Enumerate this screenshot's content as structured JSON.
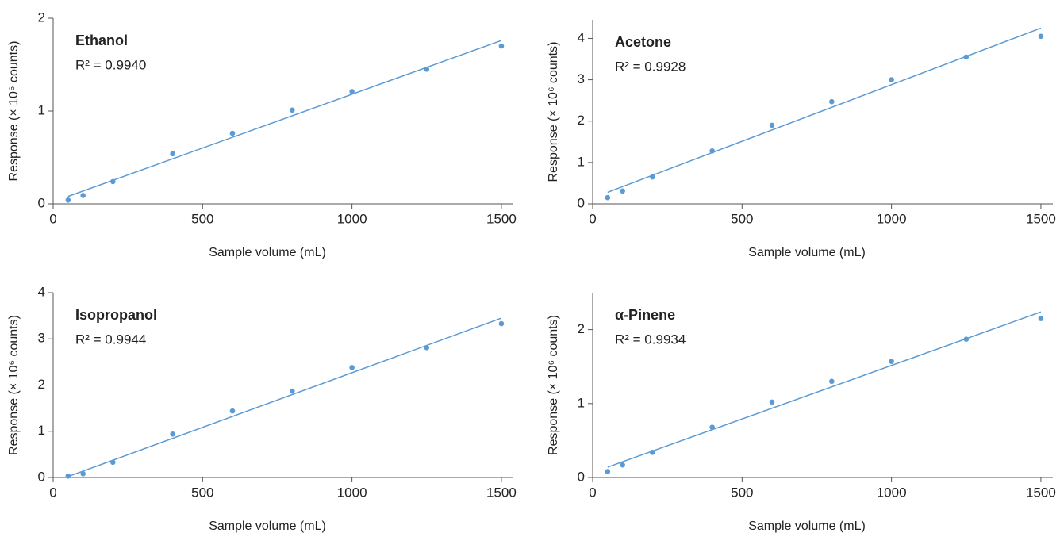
{
  "chart_data": [
    {
      "type": "scatter",
      "title": "Ethanol",
      "annotation": "R² = 0.9940",
      "x_label": "Sample volume (mL)",
      "y_label": "Response (× 10⁶ counts)",
      "x": [
        50,
        100,
        200,
        400,
        600,
        800,
        1000,
        1250,
        1500
      ],
      "values": [
        0.04,
        0.09,
        0.24,
        0.54,
        0.76,
        1.01,
        1.21,
        1.45,
        1.7
      ],
      "fit": {
        "x": [
          50,
          1500
        ],
        "y": [
          0.08,
          1.76
        ]
      },
      "color": "#5b9bd5",
      "xlim": [
        0,
        1540
      ],
      "xticks": [
        0,
        500,
        1000,
        1500
      ],
      "ylim": [
        0,
        2
      ],
      "yticks": [
        0,
        1,
        2
      ]
    },
    {
      "type": "scatter",
      "title": "Acetone",
      "annotation": "R² = 0.9928",
      "x_label": "Sample volume (mL)",
      "y_label": "Response (× 10⁶ counts)",
      "x": [
        50,
        100,
        200,
        400,
        600,
        800,
        1000,
        1250,
        1500
      ],
      "values": [
        0.15,
        0.31,
        0.65,
        1.28,
        1.9,
        2.47,
        3.0,
        3.55,
        4.05
      ],
      "fit": {
        "x": [
          50,
          1500
        ],
        "y": [
          0.28,
          4.25
        ]
      },
      "color": "#5b9bd5",
      "xlim": [
        0,
        1540
      ],
      "xticks": [
        0,
        500,
        1000,
        1500
      ],
      "ylim": [
        0,
        4.45
      ],
      "yticks": [
        0,
        1,
        2,
        3,
        4
      ]
    },
    {
      "type": "scatter",
      "title": "Isopropanol",
      "annotation": "R² = 0.9944",
      "x_label": "Sample volume (mL)",
      "y_label": "Response (× 10⁶ counts)",
      "x": [
        50,
        100,
        200,
        400,
        600,
        800,
        1000,
        1250,
        1500
      ],
      "values": [
        0.03,
        0.08,
        0.33,
        0.94,
        1.44,
        1.87,
        2.38,
        2.81,
        3.33
      ],
      "fit": {
        "x": [
          50,
          1500
        ],
        "y": [
          0.02,
          3.45
        ]
      },
      "color": "#5b9bd5",
      "xlim": [
        0,
        1540
      ],
      "xticks": [
        0,
        500,
        1000,
        1500
      ],
      "ylim": [
        0,
        4
      ],
      "yticks": [
        0,
        1,
        2,
        3,
        4
      ]
    },
    {
      "type": "scatter",
      "title": "α-Pinene",
      "annotation": "R² = 0.9934",
      "x_label": "Sample volume (mL)",
      "y_label": "Response (× 10⁶ counts)",
      "x": [
        50,
        100,
        200,
        400,
        600,
        800,
        1000,
        1250,
        1500
      ],
      "values": [
        0.08,
        0.17,
        0.34,
        0.68,
        1.02,
        1.3,
        1.57,
        1.87,
        2.15
      ],
      "fit": {
        "x": [
          50,
          1500
        ],
        "y": [
          0.14,
          2.24
        ]
      },
      "color": "#5b9bd5",
      "xlim": [
        0,
        1540
      ],
      "xticks": [
        0,
        500,
        1000,
        1500
      ],
      "ylim": [
        0,
        2.5
      ],
      "yticks": [
        0,
        1,
        2
      ]
    }
  ]
}
